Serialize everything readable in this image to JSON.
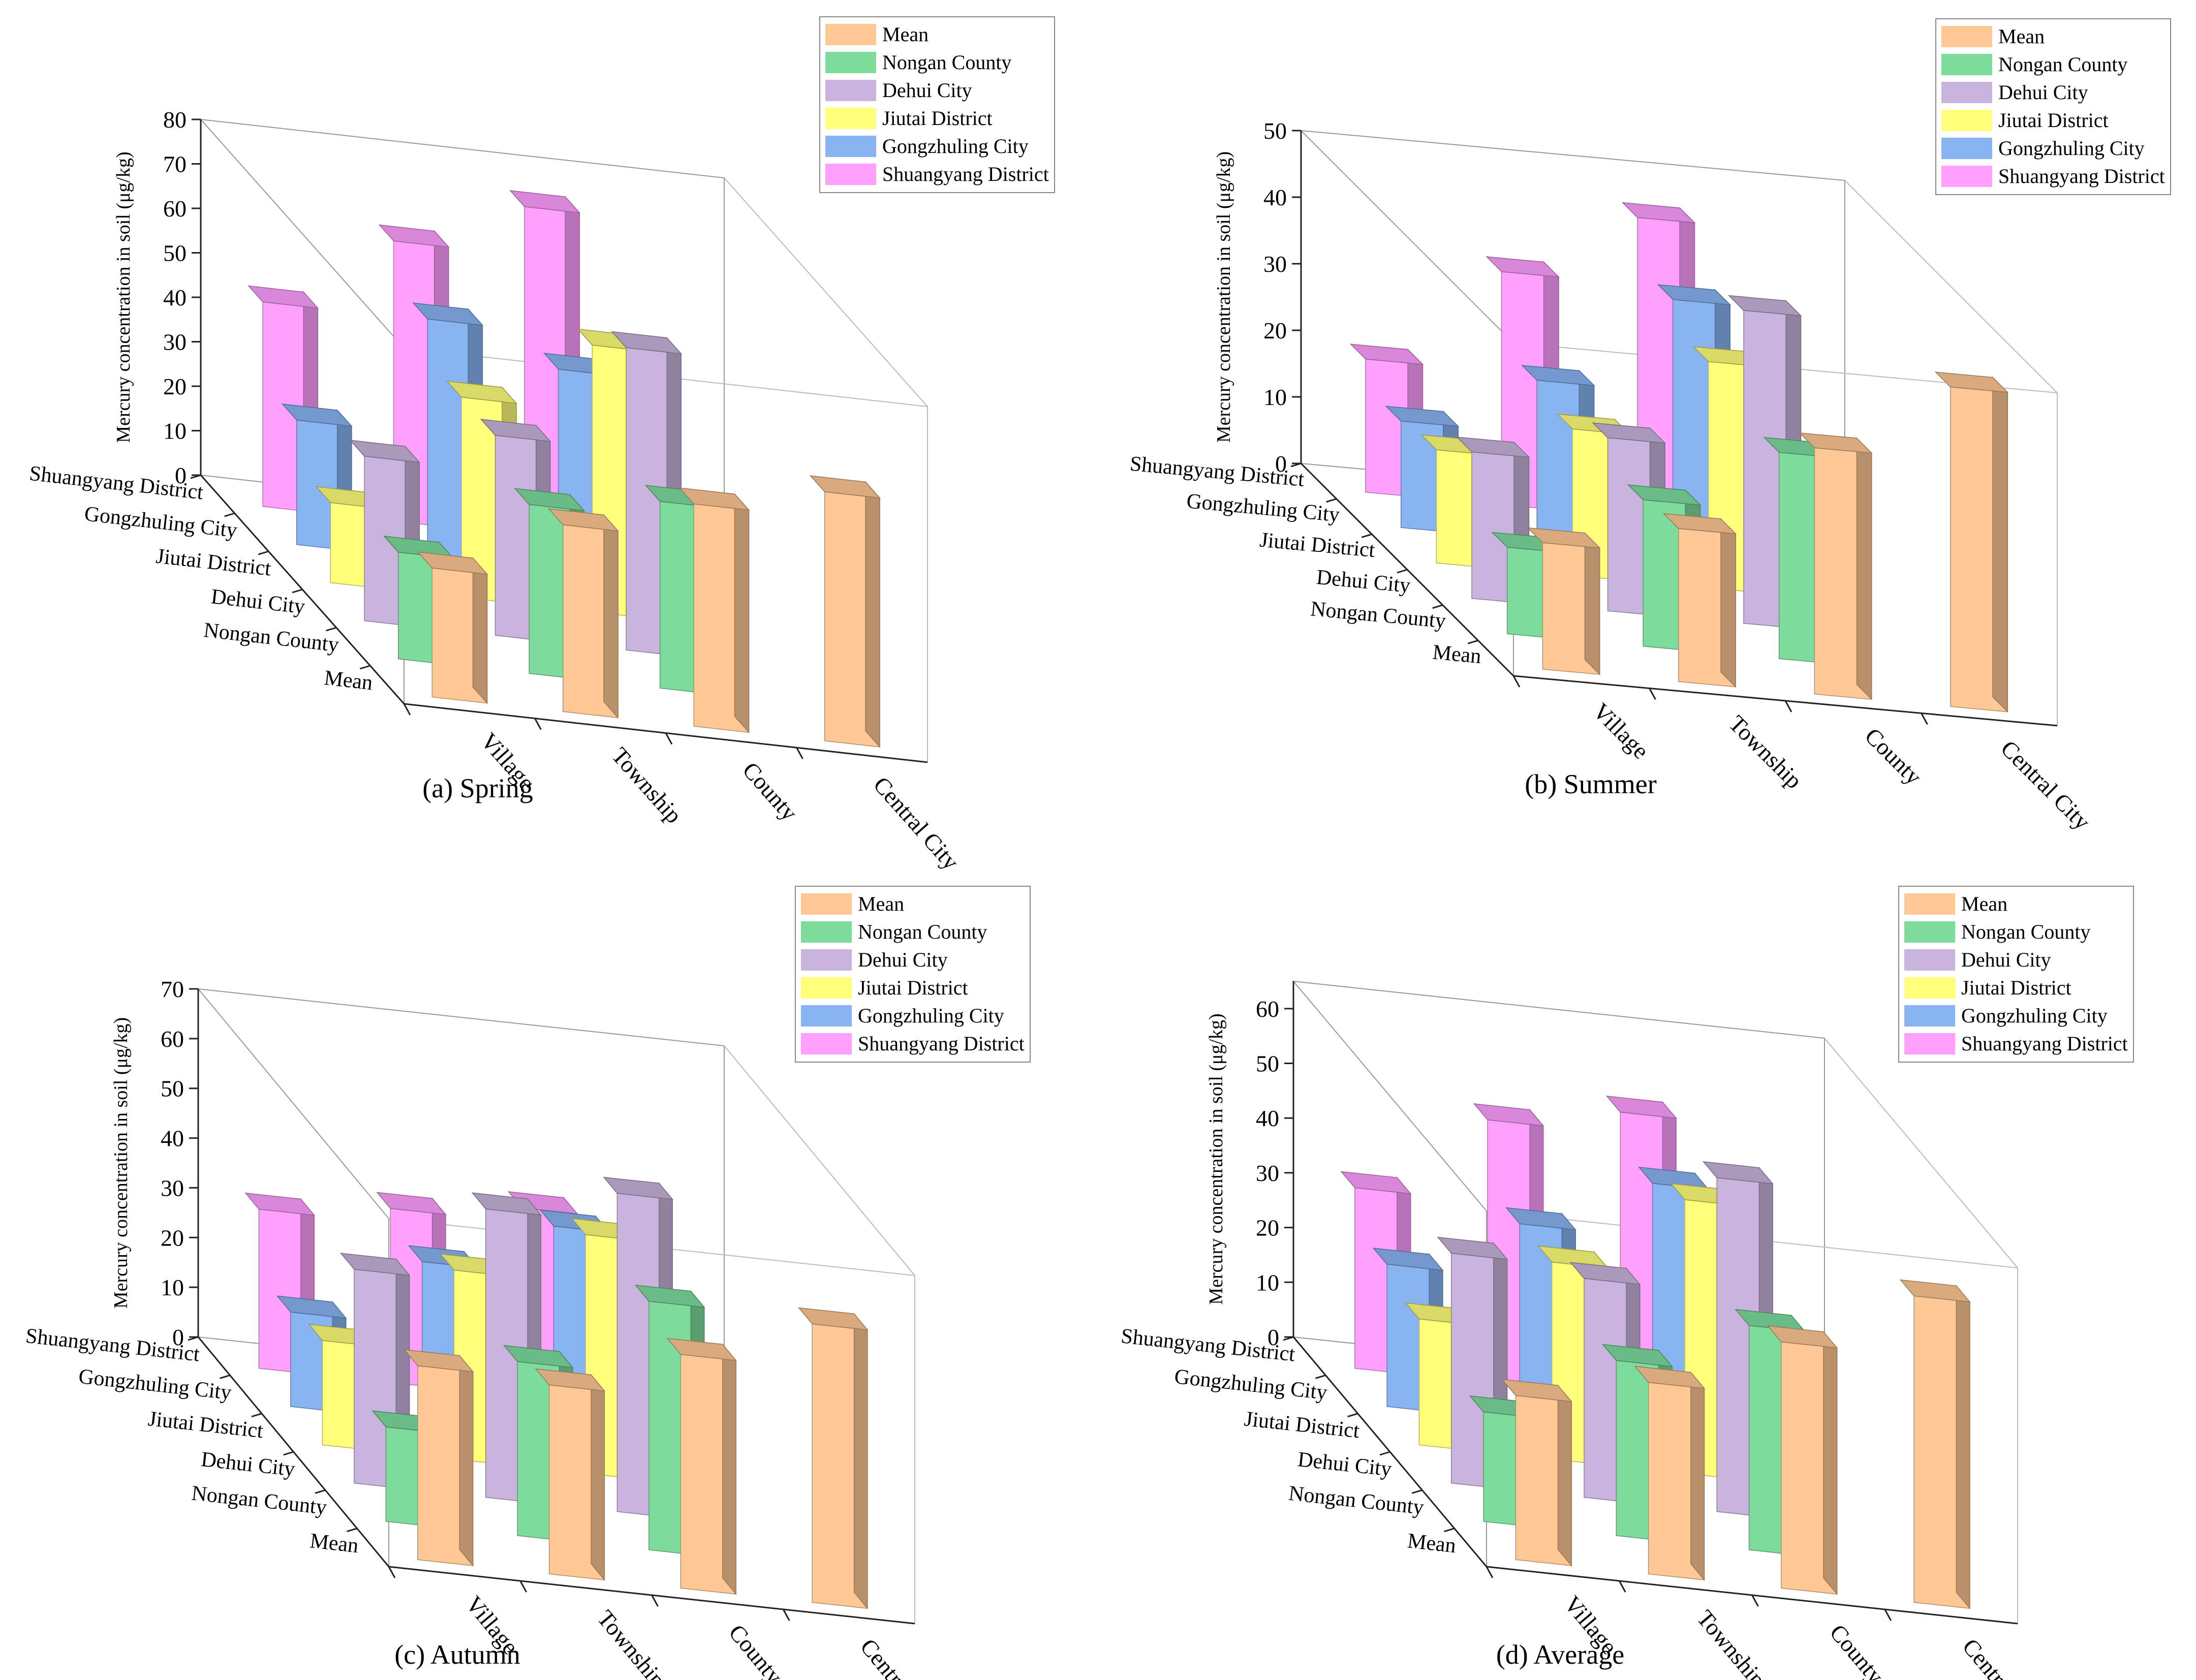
{
  "colors": {
    "Mean": "#ffc894",
    "Nongan County": "#7ddc9c",
    "Dehui City": "#c8b4dc",
    "Jiutai District": "#ffff7a",
    "Gongzhuling City": "#88b4f2",
    "Shuangyang District": "#ffa0ff"
  },
  "chart_data": [
    {
      "type": "bar3d",
      "title": "(a) Spring",
      "zlabel": "Mercury concentration in soil (μg/kg)",
      "zlim": [
        0,
        80
      ],
      "zticks": [
        0,
        10,
        20,
        30,
        40,
        50,
        60,
        70,
        80
      ],
      "x_categories": [
        "Village",
        "Township",
        "County",
        "Central City"
      ],
      "y_categories": [
        "Shuangyang District",
        "Gongzhuling City",
        "Jiutai District",
        "Dehui City",
        "Nongan County",
        "Mean"
      ],
      "legend": [
        "Mean",
        "Nongan County",
        "Dehui City",
        "Jiutai District",
        "Gongzhuling City",
        "Shuangyang District"
      ],
      "series": [
        {
          "name": "Shuangyang District",
          "values": [
            46,
            63,
            74,
            null
          ]
        },
        {
          "name": "Gongzhuling City",
          "values": [
            28,
            54,
            46,
            null
          ]
        },
        {
          "name": "Jiutai District",
          "values": [
            18,
            45,
            60,
            null
          ]
        },
        {
          "name": "Dehui City",
          "values": [
            37,
            45,
            68,
            null
          ]
        },
        {
          "name": "Nongan County",
          "values": [
            24,
            38,
            42,
            null
          ]
        },
        {
          "name": "Mean",
          "values": [
            29,
            42,
            50,
            56
          ]
        }
      ]
    },
    {
      "type": "bar3d",
      "title": "(b) Summer",
      "zlabel": "Mercury concentration in soil (μg/kg)",
      "zlim": [
        0,
        50
      ],
      "zticks": [
        0,
        10,
        20,
        30,
        40,
        50
      ],
      "x_categories": [
        "Village",
        "Township",
        "County",
        "Central City"
      ],
      "y_categories": [
        "Shuangyang District",
        "Gongzhuling City",
        "Jiutai District",
        "Dehui City",
        "Nongan County",
        "Mean"
      ],
      "legend": [
        "Mean",
        "Nongan County",
        "Dehui City",
        "Jiutai District",
        "Gongzhuling City",
        "Shuangyang District"
      ],
      "series": [
        {
          "name": "Shuangyang District",
          "values": [
            20,
            35,
            45,
            null
          ]
        },
        {
          "name": "Gongzhuling City",
          "values": [
            16,
            24,
            38,
            null
          ]
        },
        {
          "name": "Jiutai District",
          "values": [
            17,
            22,
            34,
            null
          ]
        },
        {
          "name": "Dehui City",
          "values": [
            22,
            26,
            47,
            null
          ]
        },
        {
          "name": "Nongan County",
          "values": [
            13,
            22,
            31,
            null
          ]
        },
        {
          "name": "Mean",
          "values": [
            19,
            23,
            37,
            48
          ]
        }
      ]
    },
    {
      "type": "bar3d",
      "title": "(c) Autumn",
      "zlabel": "Mercury concentration in soil (μg/kg)",
      "zlim": [
        0,
        70
      ],
      "zticks": [
        0,
        10,
        20,
        30,
        40,
        50,
        60,
        70
      ],
      "x_categories": [
        "Village",
        "Township",
        "County",
        "Central City"
      ],
      "y_categories": [
        "Shuangyang District",
        "Gongzhuling City",
        "Jiutai District",
        "Dehui City",
        "Nongan County",
        "Mean"
      ],
      "legend": [
        "Mean",
        "Nongan County",
        "Dehui City",
        "Jiutai District",
        "Gongzhuling City",
        "Shuangyang District"
      ],
      "series": [
        {
          "name": "Shuangyang District",
          "values": [
            32,
            35,
            38,
            null
          ]
        },
        {
          "name": "Gongzhuling City",
          "values": [
            19,
            32,
            42,
            null
          ]
        },
        {
          "name": "Jiutai District",
          "values": [
            21,
            38,
            48,
            null
          ]
        },
        {
          "name": "Dehui City",
          "values": [
            43,
            58,
            64,
            null
          ]
        },
        {
          "name": "Nongan County",
          "values": [
            19,
            35,
            50,
            null
          ]
        },
        {
          "name": "Mean",
          "values": [
            39,
            38,
            47,
            56
          ]
        }
      ]
    },
    {
      "type": "bar3d",
      "title": "(d) Average",
      "zlabel": "Mercury concentration in soil (μg/kg)",
      "zlim": [
        0,
        65
      ],
      "zticks": [
        0,
        10,
        20,
        30,
        40,
        50,
        60
      ],
      "x_categories": [
        "Village",
        "Township",
        "County",
        "Central City"
      ],
      "y_categories": [
        "Shuangyang District",
        "Gongzhuling City",
        "Jiutai District",
        "Dehui City",
        "Nongan County",
        "Mean"
      ],
      "legend": [
        "Mean",
        "Nongan County",
        "Dehui City",
        "Jiutai District",
        "Gongzhuling City",
        "Shuangyang District"
      ],
      "series": [
        {
          "name": "Shuangyang District",
          "values": [
            33,
            48,
            52,
            null
          ]
        },
        {
          "name": "Gongzhuling City",
          "values": [
            26,
            36,
            46,
            null
          ]
        },
        {
          "name": "Jiutai District",
          "values": [
            23,
            36,
            50,
            null
          ]
        },
        {
          "name": "Dehui City",
          "values": [
            42,
            40,
            61,
            null
          ]
        },
        {
          "name": "Nongan County",
          "values": [
            20,
            32,
            41,
            null
          ]
        },
        {
          "name": "Mean",
          "values": [
            30,
            35,
            45,
            56
          ]
        }
      ]
    }
  ]
}
